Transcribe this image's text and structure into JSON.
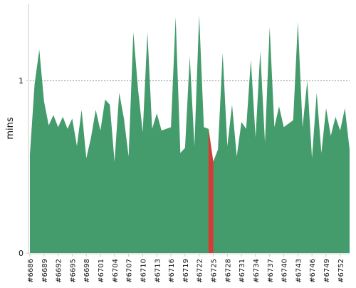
{
  "chart_data": {
    "type": "area",
    "title": "",
    "xlabel": "",
    "ylabel": "mins",
    "ylim": [
      0,
      1.45
    ],
    "grid": "dashed horizontal line at 1",
    "colors": {
      "area": "#449b6c",
      "highlight": "#d83a33",
      "axis": "#cccccc",
      "gridline": "#888888",
      "text": "#111111"
    },
    "categories": [
      "#6686",
      "#6687",
      "#6688",
      "#6689",
      "#6690",
      "#6691",
      "#6692",
      "#6693",
      "#6694",
      "#6695",
      "#6696",
      "#6697",
      "#6698",
      "#6699",
      "#6700",
      "#6701",
      "#6702",
      "#6703",
      "#6704",
      "#6705",
      "#6706",
      "#6707",
      "#6708",
      "#6709",
      "#6710",
      "#6711",
      "#6712",
      "#6713",
      "#6714",
      "#6715",
      "#6716",
      "#6717",
      "#6718",
      "#6719",
      "#6720",
      "#6721",
      "#6722",
      "#6723",
      "#6724",
      "#6725",
      "#6726",
      "#6727",
      "#6728",
      "#6729",
      "#6730",
      "#6731",
      "#6732",
      "#6733",
      "#6734",
      "#6735",
      "#6736",
      "#6737",
      "#6738",
      "#6739",
      "#6740",
      "#6741",
      "#6742",
      "#6743",
      "#6744",
      "#6745",
      "#6746",
      "#6747",
      "#6748",
      "#6749",
      "#6750",
      "#6751",
      "#6752",
      "#6753",
      "#6754"
    ],
    "tick_labels": [
      "#6686",
      "#6689",
      "#6692",
      "#6695",
      "#6698",
      "#6701",
      "#6704",
      "#6707",
      "#6710",
      "#6713",
      "#6716",
      "#6719",
      "#6722",
      "#6725",
      "#6728",
      "#6731",
      "#6734",
      "#6737",
      "#6740",
      "#6743",
      "#6746",
      "#6749",
      "#6752"
    ],
    "y_ticks": [
      0,
      1
    ],
    "series": [
      {
        "values": [
          0.57,
          0.98,
          1.18,
          0.88,
          0.74,
          0.8,
          0.73,
          0.79,
          0.72,
          0.78,
          0.62,
          0.83,
          0.55,
          0.67,
          0.83,
          0.71,
          0.89,
          0.86,
          0.53,
          0.93,
          0.78,
          0.56,
          1.28,
          0.95,
          0.7,
          1.28,
          0.72,
          0.81,
          0.71,
          0.72,
          0.73,
          1.37,
          0.58,
          0.61,
          1.14,
          0.62,
          1.38,
          0.73,
          0.72,
          0.53,
          0.6,
          1.16,
          0.62,
          0.86,
          0.56,
          0.76,
          0.72,
          1.12,
          0.67,
          1.17,
          0.64,
          1.31,
          0.73,
          0.85,
          0.73,
          0.75,
          0.77,
          1.34,
          0.73,
          1.0,
          0.55,
          0.93,
          0.58,
          0.84,
          0.68,
          0.79,
          0.71,
          0.84,
          0.6
        ],
        "highlight_index": 38
      }
    ]
  }
}
